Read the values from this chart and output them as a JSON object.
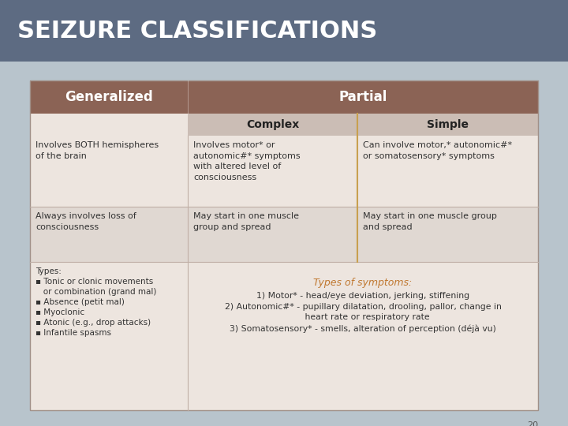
{
  "title": "SEIZURE CLASSIFICATIONS",
  "title_bg": "#5d6b82",
  "title_color": "#ffffff",
  "slide_bg": "#b8c4cc",
  "table_bg": "#ede5df",
  "header_row_bg": "#8b6355",
  "header_row_color": "#ffffff",
  "subheader_bg": "#cbbdb5",
  "subheader_color": "#222222",
  "divider_color": "#c8a050",
  "body_text_color": "#333333",
  "types_text_color": "#c07830",
  "page_number": "20",
  "col1_header": "Generalized",
  "col2_header": "Partial",
  "col2a_subheader": "Complex",
  "col2b_subheader": "Simple",
  "row1_col1": "Involves BOTH hemispheres\nof the brain",
  "row1_col2a": "Involves motor* or\nautonomic#* symptoms\nwith altered level of\nconsciousness",
  "row1_col2b": "Can involve motor,* autonomic#*\nor somatosensory* symptoms",
  "row2_col1": "Always involves loss of\nconsciousness",
  "row2_col2a": "May start in one muscle\ngroup and spread",
  "row2_col2b": "May start in one muscle group\nand spread",
  "row3_col1": "Types:\n▪ Tonic or clonic movements\n   or combination (grand mal)\n▪ Absence (petit mal)\n▪ Myoclonic\n▪ Atonic (e.g., drop attacks)\n▪ Infantile spasms",
  "row3_col23_title": "Types of symptoms:",
  "row3_col23_body": "1) Motor* - head/eye deviation, jerking, stiffening\n2) Autonomic#* - pupillary dilatation, drooling, pallor, change in\n   heart rate or respiratory rate\n3) Somatosensory* - smells, alteration of perception (déjà vu)"
}
